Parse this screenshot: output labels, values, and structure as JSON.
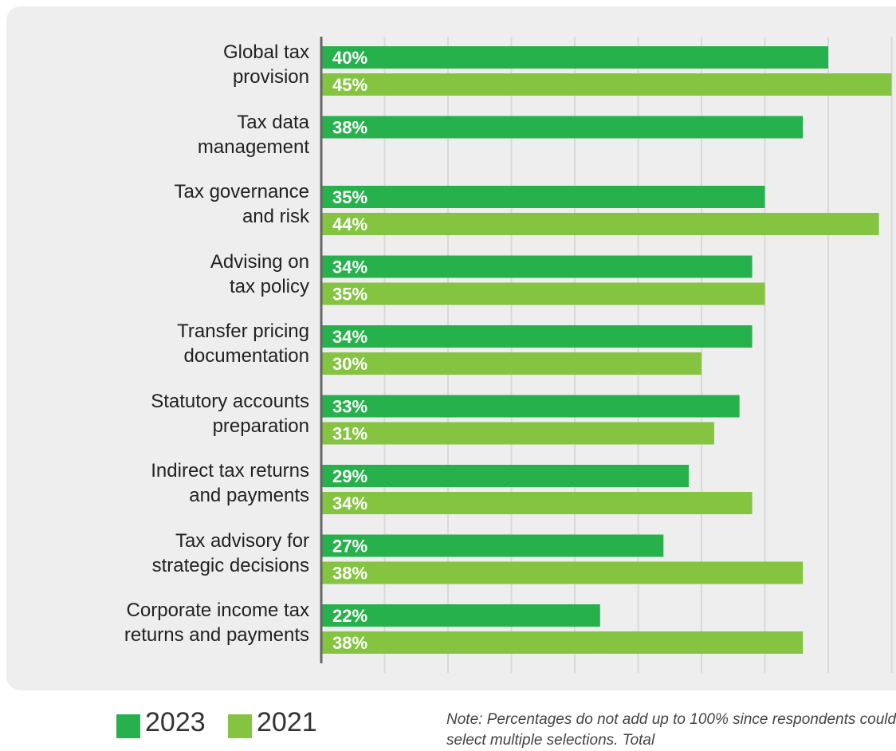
{
  "colors": {
    "series_2023": "#27b14d",
    "series_2021": "#84c441",
    "panel_bg": "#eeeeee",
    "gridline": "#d9d9d9",
    "axis": "#666666",
    "bar_label": "#ffffff"
  },
  "chart_data": {
    "type": "bar",
    "orientation": "horizontal",
    "categories": [
      "Global tax provision",
      "Tax data management",
      "Tax governance and risk",
      "Advising on tax policy",
      "Transfer pricing documentation",
      "Statutory accounts preparation",
      "Indirect tax returns and payments",
      "Tax advisory for strategic decisions",
      "Corporate income tax returns and payments"
    ],
    "category_lines": [
      [
        "Global tax",
        "provision"
      ],
      [
        "Tax data",
        "management"
      ],
      [
        "Tax governance",
        "and risk"
      ],
      [
        "Advising on",
        "tax policy"
      ],
      [
        "Transfer pricing",
        "documentation"
      ],
      [
        "Statutory accounts",
        "preparation"
      ],
      [
        "Indirect tax returns",
        "and payments"
      ],
      [
        "Tax advisory for",
        "strategic decisions"
      ],
      [
        "Corporate income tax",
        "returns and payments"
      ]
    ],
    "series": [
      {
        "name": "2023",
        "values": [
          40,
          38,
          35,
          34,
          34,
          33,
          29,
          27,
          22
        ],
        "labels": [
          "40%",
          "38%",
          "35%",
          "34%",
          "34%",
          "33%",
          "29%",
          "27%",
          "22%"
        ]
      },
      {
        "name": "2021",
        "values": [
          45,
          null,
          44,
          35,
          30,
          31,
          34,
          38,
          38
        ],
        "labels": [
          "45%",
          "",
          "44%",
          "35%",
          "30%",
          "31%",
          "34%",
          "38%",
          "38%"
        ]
      }
    ],
    "xlim": [
      0,
      45
    ],
    "grid": true,
    "legend_position": "bottom-left",
    "note": "Note: Percentages do not add up to 100% since respondents could select multiple selections. Total"
  }
}
